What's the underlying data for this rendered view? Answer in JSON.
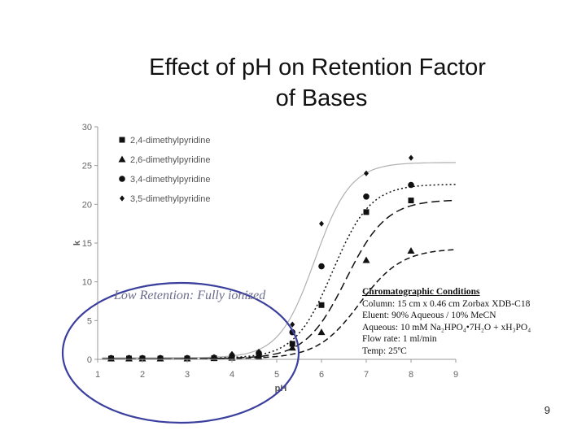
{
  "slide": {
    "title_line1": "Effect of pH on Retention Factor",
    "title_line2": "of Bases",
    "annotation": "Low Retention: Fully ionized",
    "conditions": {
      "heading": "Chromatographic Conditions",
      "column": "Column:   15 cm x 0.46 cm Zorbax XDB-C18",
      "eluent": "Eluent:    90% Aqueous / 10% MeCN",
      "aqueous": "Aqueous:     10 mM Na₂HPO₄•7H₂O + xH₃PO₄",
      "flow_rate": "Flow rate: 1 ml/min",
      "temp": "Temp:       25ºC"
    },
    "slide_number": "9",
    "colors": {
      "ellipse": "#3b3f9e",
      "annotation": "#6c6c8c",
      "series": "#111111",
      "fit_solid": "#b0b0b0"
    }
  },
  "chart_data": {
    "type": "scatter",
    "xlabel": "pH",
    "ylabel": "k",
    "xlim": [
      1,
      9
    ],
    "ylim": [
      0,
      30
    ],
    "x_ticks": [
      1,
      2,
      3,
      4,
      5,
      6,
      7,
      8,
      9
    ],
    "y_ticks": [
      0,
      5,
      10,
      15,
      20,
      25,
      30
    ],
    "legend_position": "top-left",
    "series": [
      {
        "name": "2,4-dimethylpyridine",
        "marker": "square",
        "line": "long-dash",
        "x": [
          1.3,
          1.7,
          2.0,
          2.4,
          3.0,
          3.6,
          4.0,
          4.6,
          5.35,
          6.0,
          7.0,
          8.0
        ],
        "y": [
          0.1,
          0.1,
          0.1,
          0.1,
          0.1,
          0.15,
          0.3,
          0.5,
          2.0,
          7.0,
          19.0,
          20.5
        ],
        "fit": {
          "base": 0.1,
          "top": 20.6,
          "mid": 6.55,
          "width": 0.45
        }
      },
      {
        "name": "2,6-dimethylpyridine",
        "marker": "triangle",
        "line": "dash",
        "x": [
          1.3,
          1.7,
          2.0,
          2.4,
          3.0,
          3.6,
          4.0,
          4.6,
          5.35,
          6.0,
          7.0,
          8.0
        ],
        "y": [
          0.1,
          0.1,
          0.1,
          0.1,
          0.1,
          0.15,
          0.2,
          0.3,
          1.5,
          3.5,
          12.8,
          14.0
        ],
        "fit": {
          "base": 0.1,
          "top": 14.3,
          "mid": 6.85,
          "width": 0.47
        }
      },
      {
        "name": "3,4-dimethylpyridine",
        "marker": "circle",
        "line": "dot",
        "x": [
          1.3,
          1.7,
          2.0,
          2.4,
          3.0,
          3.6,
          4.0,
          4.6,
          5.35,
          6.0,
          7.0,
          8.0
        ],
        "y": [
          0.15,
          0.15,
          0.15,
          0.15,
          0.15,
          0.2,
          0.4,
          0.8,
          3.5,
          12.0,
          21.0,
          22.5
        ],
        "fit": {
          "base": 0.15,
          "top": 22.6,
          "mid": 6.25,
          "width": 0.42
        }
      },
      {
        "name": "3,5-dimethylpyridine",
        "marker": "diamond",
        "line": "solid",
        "x": [
          1.3,
          1.7,
          2.0,
          2.4,
          3.0,
          3.6,
          4.0,
          4.6,
          5.35,
          6.0,
          7.0,
          8.0
        ],
        "y": [
          0.2,
          0.2,
          0.2,
          0.2,
          0.2,
          0.3,
          0.7,
          1.0,
          4.5,
          17.5,
          24.0,
          26.0
        ],
        "fit": {
          "base": 0.2,
          "top": 25.4,
          "mid": 5.85,
          "width": 0.4
        }
      }
    ]
  }
}
